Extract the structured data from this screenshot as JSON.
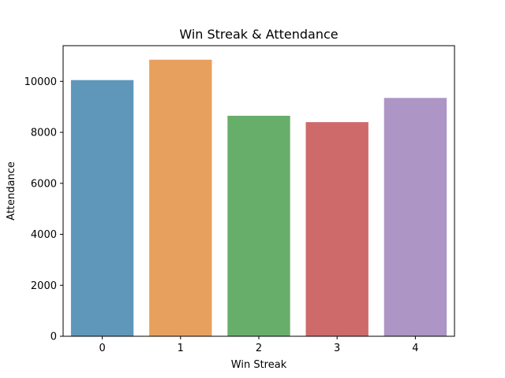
{
  "chart_data": {
    "type": "bar",
    "title": "Win Streak & Attendance",
    "xlabel": "Win Streak",
    "ylabel": "Attendance",
    "categories": [
      "0",
      "1",
      "2",
      "3",
      "4"
    ],
    "values": [
      10050,
      10850,
      8650,
      8400,
      9350
    ],
    "colors": [
      "#5f97bb",
      "#e8a05f",
      "#68ae6b",
      "#cf6a6b",
      "#ad95c5"
    ],
    "ylim": [
      0,
      11400
    ],
    "yticks": [
      0,
      2000,
      4000,
      6000,
      8000,
      10000
    ],
    "ytick_labels": [
      "0",
      "2000",
      "4000",
      "6000",
      "8000",
      "10000"
    ],
    "grid": false,
    "legend": "none"
  }
}
